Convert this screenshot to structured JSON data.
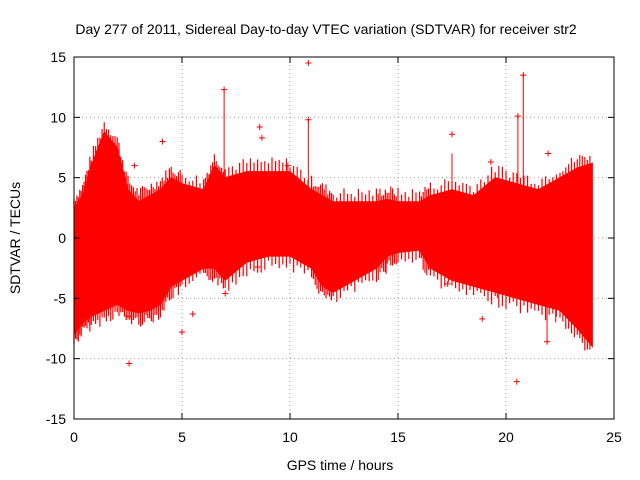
{
  "chart_data": {
    "type": "scatter",
    "title": "Day 277 of 2011, Sidereal Day-to-day VTEC variation (SDTVAR) for receiver str2",
    "xlabel": "GPS time / hours",
    "ylabel": "SDTVAR / TECUs",
    "xlim": [
      0,
      25
    ],
    "ylim": [
      -15,
      15
    ],
    "xticks": [
      "0",
      "5",
      "10",
      "15",
      "20",
      "25"
    ],
    "yticks": [
      "-15",
      "-10",
      "-5",
      "0",
      "5",
      "10",
      "15"
    ],
    "grid": true,
    "legend": "none",
    "series_color": "#ff0000",
    "envelope": [
      {
        "x": 0.0,
        "lo": -8.0,
        "hi": 2.5
      },
      {
        "x": 0.4,
        "lo": -7.0,
        "hi": 3.5
      },
      {
        "x": 0.8,
        "lo": -6.5,
        "hi": 6.0
      },
      {
        "x": 1.4,
        "lo": -6.0,
        "hi": 8.8
      },
      {
        "x": 2.0,
        "lo": -5.5,
        "hi": 7.5
      },
      {
        "x": 2.5,
        "lo": -6.0,
        "hi": 4.0
      },
      {
        "x": 3.0,
        "lo": -6.2,
        "hi": 3.0
      },
      {
        "x": 3.5,
        "lo": -6.0,
        "hi": 3.5
      },
      {
        "x": 4.0,
        "lo": -5.5,
        "hi": 4.0
      },
      {
        "x": 4.5,
        "lo": -4.0,
        "hi": 5.0
      },
      {
        "x": 5.0,
        "lo": -3.5,
        "hi": 4.5
      },
      {
        "x": 6.0,
        "lo": -2.5,
        "hi": 4.0
      },
      {
        "x": 6.5,
        "lo": -2.5,
        "hi": 6.0
      },
      {
        "x": 7.0,
        "lo": -3.5,
        "hi": 5.0
      },
      {
        "x": 8.0,
        "lo": -2.0,
        "hi": 5.5
      },
      {
        "x": 9.0,
        "lo": -1.5,
        "hi": 5.5
      },
      {
        "x": 10.0,
        "lo": -1.5,
        "hi": 5.5
      },
      {
        "x": 11.0,
        "lo": -2.5,
        "hi": 4.0
      },
      {
        "x": 11.5,
        "lo": -4.0,
        "hi": 3.5
      },
      {
        "x": 12.0,
        "lo": -4.5,
        "hi": 3.0
      },
      {
        "x": 13.0,
        "lo": -3.5,
        "hi": 3.0
      },
      {
        "x": 14.0,
        "lo": -2.5,
        "hi": 3.0
      },
      {
        "x": 14.5,
        "lo": -1.5,
        "hi": 3.2
      },
      {
        "x": 15.0,
        "lo": -1.2,
        "hi": 3.0
      },
      {
        "x": 16.0,
        "lo": -1.0,
        "hi": 3.0
      },
      {
        "x": 16.5,
        "lo": -2.5,
        "hi": 3.5
      },
      {
        "x": 17.5,
        "lo": -3.5,
        "hi": 4.0
      },
      {
        "x": 18.5,
        "lo": -4.0,
        "hi": 3.5
      },
      {
        "x": 19.5,
        "lo": -4.5,
        "hi": 5.0
      },
      {
        "x": 20.5,
        "lo": -5.0,
        "hi": 4.5
      },
      {
        "x": 21.5,
        "lo": -5.5,
        "hi": 4.0
      },
      {
        "x": 22.5,
        "lo": -6.0,
        "hi": 5.0
      },
      {
        "x": 23.3,
        "lo": -7.5,
        "hi": 5.8
      },
      {
        "x": 24.0,
        "lo": -9.0,
        "hi": 6.2
      }
    ],
    "spikes": [
      {
        "x": 6.95,
        "lo": 5.0,
        "hi": 12.3
      },
      {
        "x": 10.85,
        "lo": 4.0,
        "hi": 9.8
      },
      {
        "x": 17.5,
        "lo": 3.5,
        "hi": 7.0
      },
      {
        "x": 20.8,
        "lo": 4.0,
        "hi": 13.5
      },
      {
        "x": 20.55,
        "lo": 4.0,
        "hi": 10.1
      },
      {
        "x": 9.9,
        "lo": 4.5,
        "hi": 6.0
      },
      {
        "x": 21.9,
        "lo": -8.6,
        "hi": -5.5
      },
      {
        "x": 22.3,
        "lo": -7.0,
        "hi": -5.0
      },
      {
        "x": 14.45,
        "lo": -3.0,
        "hi": -1.5
      },
      {
        "x": 19.6,
        "lo": -5.0,
        "hi": -3.0
      }
    ],
    "outliers": [
      {
        "x": 10.85,
        "y": 14.5
      },
      {
        "x": 20.8,
        "y": 13.5
      },
      {
        "x": 6.95,
        "y": 12.3
      },
      {
        "x": 20.55,
        "y": 10.1
      },
      {
        "x": 10.85,
        "y": 9.8
      },
      {
        "x": 8.6,
        "y": 9.2
      },
      {
        "x": 8.7,
        "y": 8.3
      },
      {
        "x": 4.1,
        "y": 8.0
      },
      {
        "x": 17.5,
        "y": 8.6
      },
      {
        "x": 21.95,
        "y": 7.0
      },
      {
        "x": 19.3,
        "y": 6.3
      },
      {
        "x": 2.8,
        "y": 6.0
      },
      {
        "x": 9.9,
        "y": 6.0
      },
      {
        "x": 2.55,
        "y": -10.4
      },
      {
        "x": 20.5,
        "y": -11.9
      },
      {
        "x": 5.0,
        "y": -7.8
      },
      {
        "x": 5.5,
        "y": -6.3
      },
      {
        "x": 18.9,
        "y": -6.7
      },
      {
        "x": 21.9,
        "y": -8.6
      },
      {
        "x": 2.5,
        "y": -6.5
      },
      {
        "x": 7.0,
        "y": -4.6
      },
      {
        "x": 8.5,
        "y": -2.4
      },
      {
        "x": 17.3,
        "y": -3.8
      },
      {
        "x": 22.8,
        "y": -5.0
      }
    ]
  }
}
